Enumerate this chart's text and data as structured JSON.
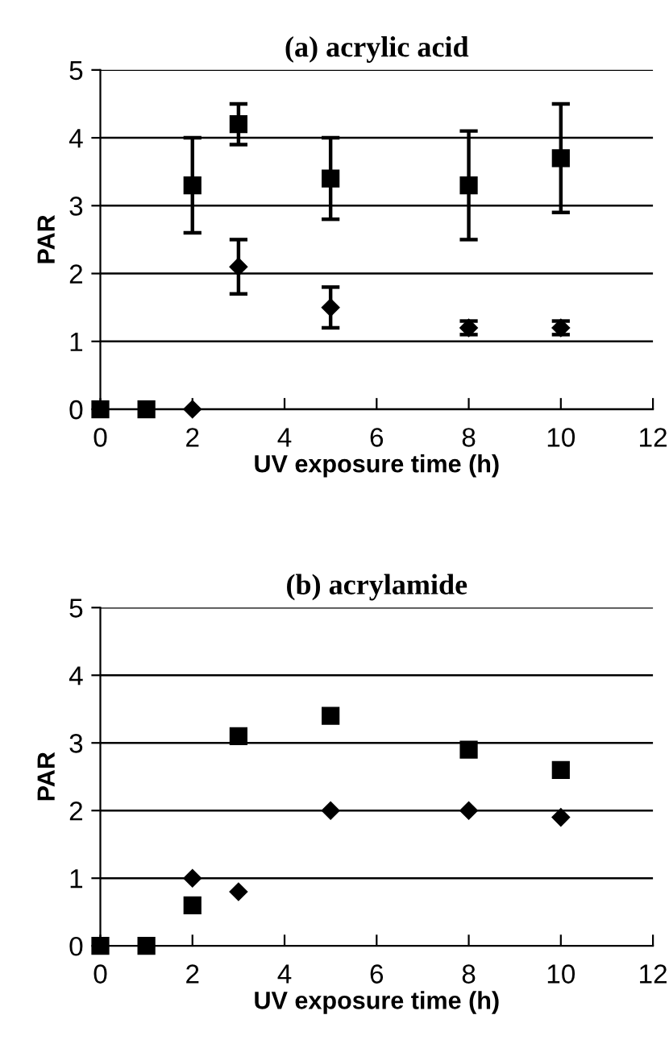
{
  "chart_data": [
    {
      "type": "scatter",
      "title": "(a) acrylic acid",
      "xlabel": "UV exposure time (h)",
      "ylabel": "PAR",
      "xlim": [
        0,
        12
      ],
      "xticks": [
        0,
        2,
        4,
        6,
        8,
        10,
        12
      ],
      "ylim": [
        0,
        5
      ],
      "yticks": [
        0,
        1,
        2,
        3,
        4,
        5
      ],
      "grid": "y",
      "legend": false,
      "series": [
        {
          "color": "#000000",
          "marker": "square",
          "x": [
            0,
            1,
            2,
            3,
            5,
            8,
            10
          ],
          "values": [
            0,
            0,
            3.3,
            4.2,
            3.4,
            3.3,
            3.7
          ],
          "errors": [
            null,
            null,
            [
              2.6,
              4.0
            ],
            [
              3.9,
              4.5
            ],
            [
              2.8,
              4.0
            ],
            [
              2.5,
              4.1
            ],
            [
              2.9,
              4.5
            ]
          ]
        },
        {
          "color": "#000000",
          "marker": "diamond",
          "x": [
            2,
            3,
            5,
            8,
            10
          ],
          "values": [
            0,
            2.1,
            1.5,
            1.2,
            1.2
          ],
          "errors": [
            null,
            [
              1.7,
              2.5
            ],
            [
              1.2,
              1.8
            ],
            [
              1.1,
              1.3
            ],
            [
              1.1,
              1.3
            ]
          ]
        }
      ]
    },
    {
      "type": "scatter",
      "title": "(b) acrylamide",
      "xlabel": "UV exposure time (h)",
      "ylabel": "PAR",
      "xlim": [
        0,
        12
      ],
      "xticks": [
        0,
        2,
        4,
        6,
        8,
        10,
        12
      ],
      "ylim": [
        0,
        5
      ],
      "yticks": [
        0,
        1,
        2,
        3,
        4,
        5
      ],
      "grid": "y",
      "legend": false,
      "series": [
        {
          "color": "#000000",
          "marker": "square",
          "x": [
            0,
            1,
            2,
            3,
            5,
            8,
            10
          ],
          "values": [
            0,
            0,
            0.6,
            3.1,
            3.4,
            2.9,
            2.6
          ]
        },
        {
          "color": "#000000",
          "marker": "diamond",
          "x": [
            2,
            3,
            5,
            8,
            10
          ],
          "values": [
            1.0,
            0.8,
            2.0,
            2.0,
            1.9
          ]
        }
      ]
    }
  ]
}
